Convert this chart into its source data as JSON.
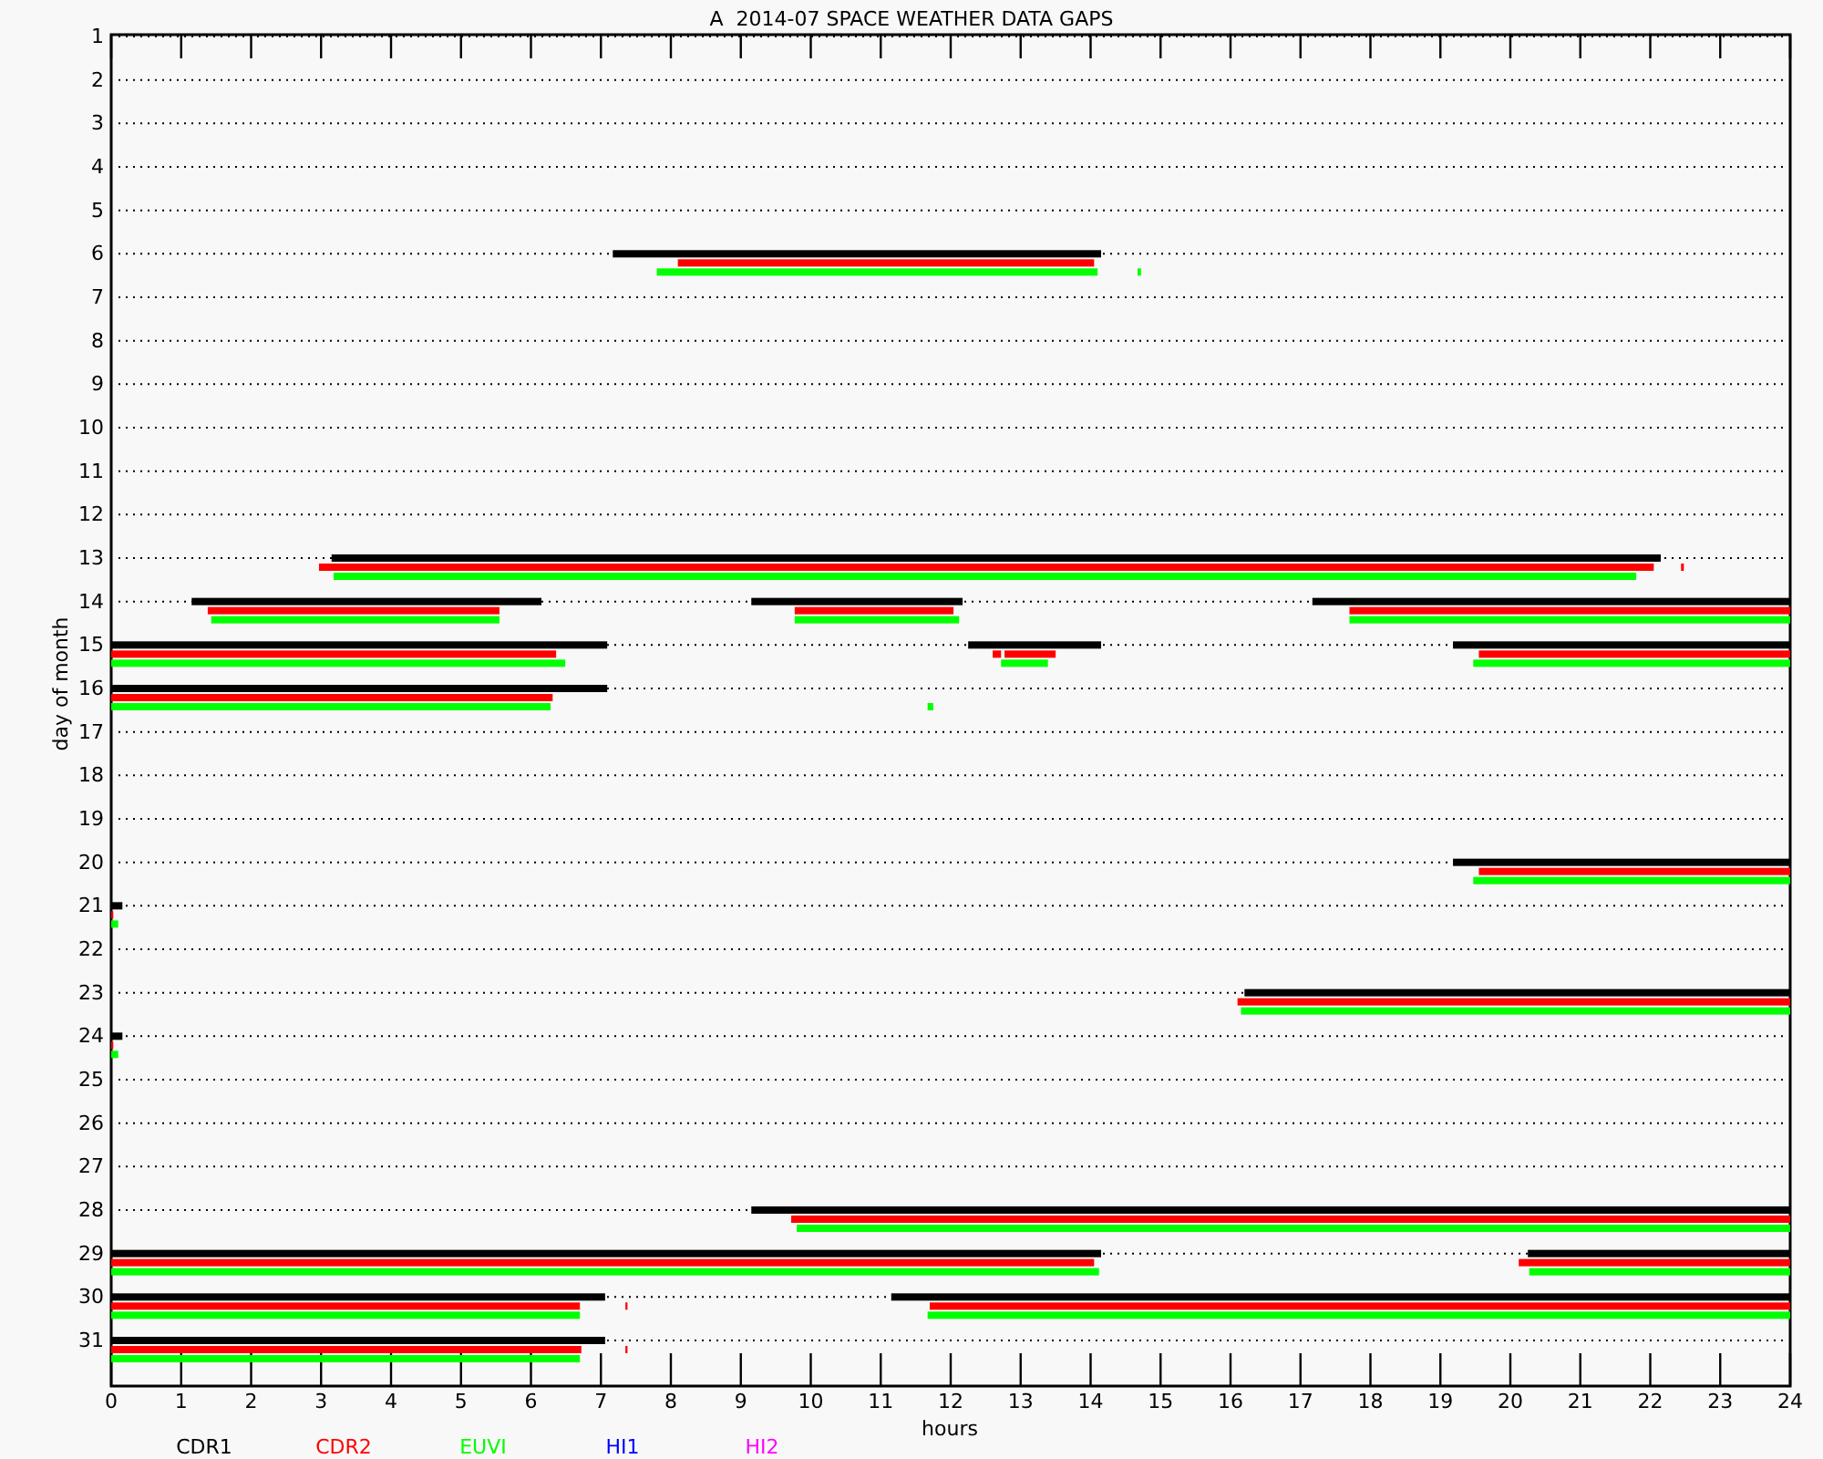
{
  "chart_data": {
    "type": "bar",
    "orientation": "horizontal",
    "title": "A  2014-07 SPACE WEATHER DATA GAPS",
    "xlabel": "hours",
    "ylabel": "day of month",
    "categories": [
      "1",
      "2",
      "3",
      "4",
      "5",
      "6",
      "7",
      "8",
      "9",
      "10",
      "11",
      "12",
      "13",
      "14",
      "15",
      "16",
      "17",
      "18",
      "19",
      "20",
      "21",
      "22",
      "23",
      "24",
      "25",
      "26",
      "27",
      "28",
      "29",
      "30",
      "31"
    ],
    "xlim": [
      0,
      24
    ],
    "xticks": [
      0,
      1,
      2,
      3,
      4,
      5,
      6,
      7,
      8,
      9,
      10,
      11,
      12,
      13,
      14,
      15,
      16,
      17,
      18,
      19,
      20,
      21,
      22,
      23,
      24
    ],
    "grid": "y",
    "legend": "bottom",
    "series": [
      {
        "name": "CDR1",
        "color": "#000000",
        "base": [
          null,
          null,
          null,
          null,
          null,
          7.17,
          null,
          null,
          null,
          null,
          null,
          null,
          3.15,
          1.15,
          0,
          0,
          null,
          null,
          null,
          19.18,
          0,
          null,
          16.2,
          0,
          null,
          null,
          null,
          9.15,
          0,
          0,
          0
        ],
        "values": [
          null,
          null,
          null,
          null,
          null,
          6.98,
          null,
          null,
          null,
          null,
          null,
          null,
          19.0,
          5.0,
          7.09,
          7.09,
          null,
          null,
          null,
          4.82,
          0.16,
          null,
          7.8,
          0.16,
          null,
          null,
          null,
          14.85,
          14.15,
          7.06,
          7.06
        ]
      },
      {
        "color": "#000000",
        "base": [
          null,
          null,
          null,
          null,
          null,
          null,
          null,
          null,
          null,
          null,
          null,
          null,
          null,
          9.15,
          12.25,
          null,
          null,
          null,
          null,
          null,
          null,
          null,
          null,
          null,
          null,
          null,
          null,
          null,
          20.25,
          11.15,
          null
        ],
        "values": [
          null,
          null,
          null,
          null,
          null,
          null,
          null,
          null,
          null,
          null,
          null,
          null,
          null,
          3.02,
          1.9,
          null,
          null,
          null,
          null,
          null,
          null,
          null,
          null,
          null,
          null,
          null,
          null,
          null,
          3.75,
          12.85,
          null
        ]
      },
      {
        "color": "#000000",
        "base": [
          null,
          null,
          null,
          null,
          null,
          null,
          null,
          null,
          null,
          null,
          null,
          null,
          null,
          17.17,
          19.18,
          null,
          null,
          null,
          null,
          null,
          null,
          null,
          null,
          null,
          null,
          null,
          null,
          null,
          null,
          null,
          null
        ],
        "values": [
          null,
          null,
          null,
          null,
          null,
          null,
          null,
          null,
          null,
          null,
          null,
          null,
          null,
          6.83,
          4.82,
          null,
          null,
          null,
          null,
          null,
          null,
          null,
          null,
          null,
          null,
          null,
          null,
          null,
          null,
          null,
          null
        ]
      },
      {
        "name": "CDR2",
        "color": "#ff0000",
        "base": [
          null,
          null,
          null,
          null,
          null,
          8.1,
          null,
          null,
          null,
          null,
          null,
          null,
          2.97,
          1.38,
          0,
          0,
          null,
          null,
          null,
          19.55,
          0,
          null,
          16.1,
          0,
          null,
          null,
          null,
          9.72,
          0,
          0,
          0
        ],
        "values": [
          null,
          null,
          null,
          null,
          null,
          5.95,
          null,
          null,
          null,
          null,
          null,
          null,
          19.08,
          4.17,
          6.36,
          6.31,
          null,
          null,
          null,
          4.45,
          0.03,
          null,
          7.9,
          0.03,
          null,
          null,
          null,
          14.28,
          14.05,
          6.7,
          6.72
        ]
      },
      {
        "color": "#ff0000",
        "base": [
          null,
          null,
          null,
          null,
          null,
          null,
          null,
          null,
          null,
          null,
          null,
          null,
          22.44,
          9.77,
          12.6,
          null,
          null,
          null,
          null,
          null,
          null,
          null,
          null,
          null,
          null,
          null,
          null,
          null,
          20.12,
          7.35,
          7.35
        ],
        "values": [
          null,
          null,
          null,
          null,
          null,
          null,
          null,
          null,
          null,
          null,
          null,
          null,
          0.04,
          2.27,
          0.12,
          null,
          null,
          null,
          null,
          null,
          null,
          null,
          null,
          null,
          null,
          null,
          null,
          null,
          3.88,
          0.03,
          0.03
        ]
      },
      {
        "color": "#ff0000",
        "base": [
          null,
          null,
          null,
          null,
          null,
          null,
          null,
          null,
          null,
          null,
          null,
          null,
          null,
          17.7,
          12.77,
          null,
          null,
          null,
          null,
          null,
          null,
          null,
          null,
          null,
          null,
          null,
          null,
          null,
          null,
          11.7,
          null
        ],
        "values": [
          null,
          null,
          null,
          null,
          null,
          null,
          null,
          null,
          null,
          null,
          null,
          null,
          null,
          6.3,
          0.73,
          null,
          null,
          null,
          null,
          null,
          null,
          null,
          null,
          null,
          null,
          null,
          null,
          null,
          null,
          12.3,
          null
        ]
      },
      {
        "color": "#ff0000",
        "base": [
          null,
          null,
          null,
          null,
          null,
          null,
          null,
          null,
          null,
          null,
          null,
          null,
          null,
          null,
          19.55,
          null,
          null,
          null,
          null,
          null,
          null,
          null,
          null,
          null,
          null,
          null,
          null,
          null,
          null,
          null,
          null
        ],
        "values": [
          null,
          null,
          null,
          null,
          null,
          null,
          null,
          null,
          null,
          null,
          null,
          null,
          null,
          null,
          4.45,
          null,
          null,
          null,
          null,
          null,
          null,
          null,
          null,
          null,
          null,
          null,
          null,
          null,
          null,
          null,
          null
        ]
      },
      {
        "name": "EUVI",
        "color": "#00ff00",
        "base": [
          null,
          null,
          null,
          null,
          null,
          7.8,
          null,
          null,
          null,
          null,
          null,
          null,
          3.18,
          1.43,
          0,
          0,
          null,
          null,
          null,
          19.47,
          0,
          null,
          16.15,
          0,
          null,
          null,
          null,
          9.8,
          0,
          0,
          0
        ],
        "values": [
          null,
          null,
          null,
          null,
          null,
          6.3,
          null,
          null,
          null,
          null,
          null,
          null,
          18.62,
          4.12,
          6.49,
          6.28,
          null,
          null,
          null,
          4.53,
          0.1,
          null,
          7.85,
          0.1,
          null,
          null,
          null,
          14.2,
          14.12,
          6.7,
          6.7
        ]
      },
      {
        "color": "#00ff00",
        "base": [
          null,
          null,
          null,
          null,
          null,
          14.67,
          null,
          null,
          null,
          null,
          null,
          null,
          null,
          9.77,
          12.72,
          11.67,
          null,
          null,
          null,
          null,
          null,
          null,
          null,
          null,
          null,
          null,
          null,
          null,
          20.27,
          11.67,
          null
        ],
        "values": [
          null,
          null,
          null,
          null,
          null,
          0.05,
          null,
          null,
          null,
          null,
          null,
          null,
          null,
          2.35,
          0.67,
          0.08,
          null,
          null,
          null,
          null,
          null,
          null,
          null,
          null,
          null,
          null,
          null,
          null,
          3.73,
          12.33,
          null
        ]
      },
      {
        "color": "#00ff00",
        "base": [
          null,
          null,
          null,
          null,
          null,
          null,
          null,
          null,
          null,
          null,
          null,
          null,
          null,
          17.7,
          19.47,
          null,
          null,
          null,
          null,
          null,
          null,
          null,
          null,
          null,
          null,
          null,
          null,
          null,
          null,
          null,
          null
        ],
        "values": [
          null,
          null,
          null,
          null,
          null,
          null,
          null,
          null,
          null,
          null,
          null,
          null,
          null,
          6.3,
          4.53,
          null,
          null,
          null,
          null,
          null,
          null,
          null,
          null,
          null,
          null,
          null,
          null,
          null,
          null,
          null,
          null
        ]
      },
      {
        "name": "HI1",
        "color": "#0000ff",
        "values": [
          null,
          null,
          null,
          null,
          null,
          null,
          null,
          null,
          null,
          null,
          null,
          null,
          null,
          null,
          null,
          null,
          null,
          null,
          null,
          null,
          null,
          null,
          null,
          null,
          null,
          null,
          null,
          null,
          null,
          null,
          null
        ]
      },
      {
        "name": "HI2",
        "color": "#ff00ff",
        "values": [
          null,
          null,
          null,
          null,
          null,
          null,
          null,
          null,
          null,
          null,
          null,
          null,
          null,
          null,
          null,
          null,
          null,
          null,
          null,
          null,
          null,
          null,
          null,
          null,
          null,
          null,
          null,
          null,
          null,
          null,
          null
        ]
      }
    ]
  }
}
